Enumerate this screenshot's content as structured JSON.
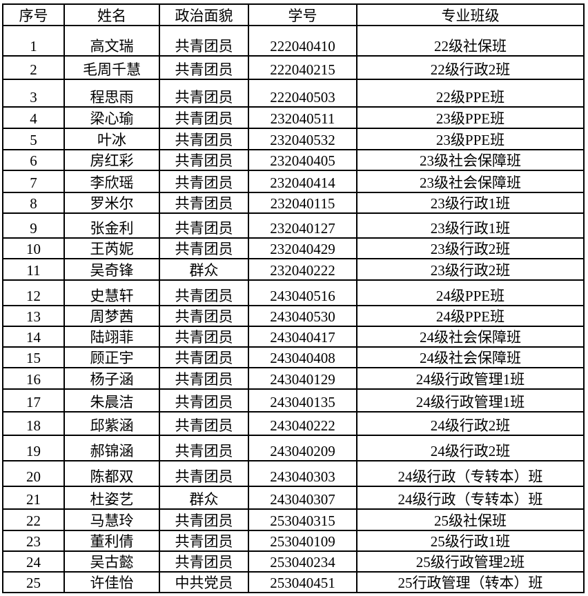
{
  "headers": [
    "序号",
    "姓名",
    "政治面貌",
    "学号",
    "专业班级"
  ],
  "rows": [
    [
      "1",
      "高文瑞",
      "共青团员",
      "222040410",
      "22级社保班"
    ],
    [
      "2",
      "毛周千慧",
      "共青团员",
      "222040215",
      "22级行政2班"
    ],
    [
      "3",
      "程思雨",
      "共青团员",
      "222040503",
      "22级PPE班"
    ],
    [
      "4",
      "梁心瑜",
      "共青团员",
      "232040511",
      "23级PPE班"
    ],
    [
      "5",
      "叶冰",
      "共青团员",
      "232040532",
      "23级PPE班"
    ],
    [
      "6",
      "房红彩",
      "共青团员",
      "232040405",
      "23级社会保障班"
    ],
    [
      "7",
      "李欣瑶",
      "共青团员",
      "232040414",
      "23级社会保障班"
    ],
    [
      "8",
      "罗米尔",
      "共青团员",
      "232040115",
      "23级行政1班"
    ],
    [
      "9",
      "张金利",
      "共青团员",
      "232040127",
      "23级行政1班"
    ],
    [
      "10",
      "王芮妮",
      "共青团员",
      "232040429",
      "23级行政2班"
    ],
    [
      "11",
      "吴奇锋",
      "群众",
      "232040222",
      "23级行政2班"
    ],
    [
      "12",
      "史慧轩",
      "共青团员",
      "243040516",
      "24级PPE班"
    ],
    [
      "13",
      "周梦茜",
      "共青团员",
      "243040530",
      "24级PPE班"
    ],
    [
      "14",
      "陆翊菲",
      "共青团员",
      "243040417",
      "24级社会保障班"
    ],
    [
      "15",
      "顾正宇",
      "共青团员",
      "243040408",
      "24级社会保障班"
    ],
    [
      "16",
      "杨子涵",
      "共青团员",
      "243040129",
      "24级行政管理1班"
    ],
    [
      "17",
      "朱晨洁",
      "共青团员",
      "243040135",
      "24级行政管理1班"
    ],
    [
      "18",
      "邱紫涵",
      "共青团员",
      "243040222",
      "24级行政2班"
    ],
    [
      "19",
      "郝锦涵",
      "共青团员",
      "243040209",
      "24级行政2班"
    ],
    [
      "20",
      "陈都双",
      "共青团员",
      "243040303",
      "24级行政（专转本）班"
    ],
    [
      "21",
      "杜姿艺",
      "群众",
      "243040307",
      "24级行政（专转本）班"
    ],
    [
      "22",
      "马慧玲",
      "共青团员",
      "253040315",
      "25级社保班"
    ],
    [
      "23",
      "董利倩",
      "共青团员",
      "253040109",
      "25级行政1班"
    ],
    [
      "24",
      "吴古懿",
      "共青团员",
      "253040234",
      "25级行政管理2班"
    ],
    [
      "25",
      "许佳怡",
      "中共党员",
      "253040451",
      "25行政管理（转本）班"
    ]
  ]
}
